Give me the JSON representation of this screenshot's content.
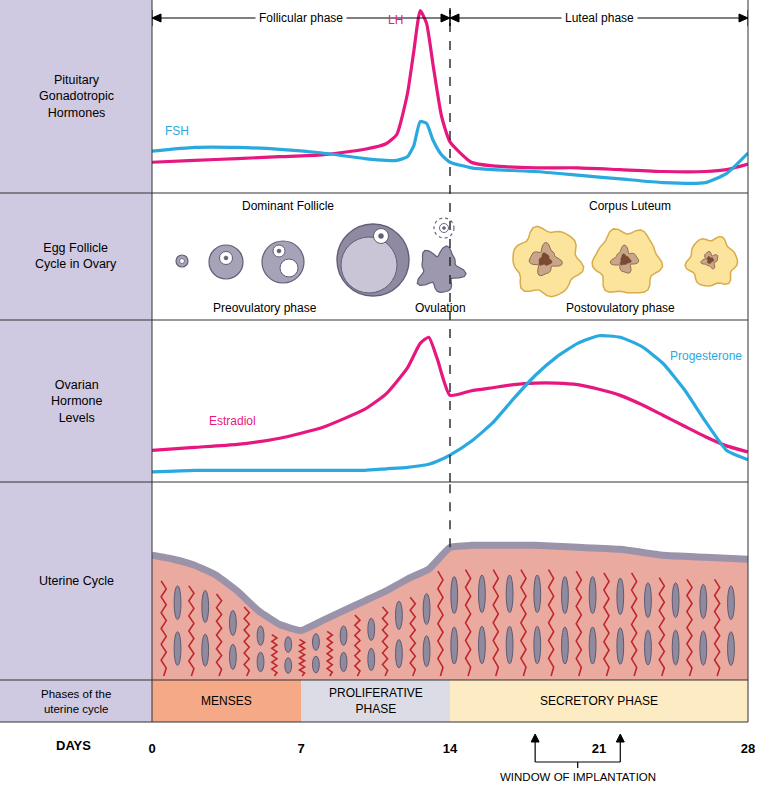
{
  "header": {
    "phases": [
      {
        "label": "Follicular phase",
        "start": 0,
        "end": 14
      },
      {
        "label": "Luteal phase",
        "start": 14,
        "end": 28
      }
    ]
  },
  "divider_day": 14,
  "chart_data": [
    {
      "type": "line",
      "title": "Pituitary\nGonadotropic\nHormones",
      "xlim": [
        0,
        28
      ],
      "ylim": [
        0,
        100
      ],
      "tick_labels": false,
      "x": [
        0,
        2,
        4,
        6,
        8,
        10,
        11,
        11.5,
        12,
        12.3,
        12.6,
        12.9,
        13.2,
        13.6,
        14,
        15,
        16,
        18,
        20,
        22,
        24,
        26,
        27,
        28
      ],
      "series": [
        {
          "name": "LH",
          "color": "#e6177f",
          "values": [
            15,
            16,
            17,
            18,
            19,
            22,
            25,
            30,
            52,
            75,
            97,
            90,
            68,
            40,
            26,
            15,
            13,
            12,
            12,
            11,
            10,
            10,
            11,
            14
          ]
        },
        {
          "name": "FSH",
          "color": "#2aa9e0",
          "values": [
            21,
            23,
            23,
            22,
            20,
            17,
            16,
            16,
            18,
            24,
            37,
            36,
            27,
            19,
            15,
            12,
            11,
            10,
            8,
            6,
            4,
            4,
            9,
            20
          ]
        }
      ]
    },
    {
      "type": "line",
      "title": "Ovarian\nHormone\nLevels",
      "xlim": [
        0,
        28
      ],
      "ylim": [
        0,
        100
      ],
      "tick_labels": false,
      "x": [
        0,
        2,
        4,
        6,
        8,
        10,
        11,
        12,
        12.6,
        13,
        13.4,
        14,
        15,
        16,
        17,
        18,
        19,
        20,
        21,
        22,
        23,
        24,
        25,
        26,
        27,
        28
      ],
      "series": [
        {
          "name": "Estradiol",
          "color": "#e6177f",
          "values": [
            18,
            20,
            22,
            26,
            33,
            45,
            55,
            72,
            88,
            92,
            78,
            54,
            57,
            59,
            61,
            62,
            62,
            61,
            58,
            54,
            48,
            41,
            34,
            27,
            21,
            17
          ]
        },
        {
          "name": "Progesterone",
          "color": "#2aa9e0",
          "values": [
            4,
            5,
            5,
            5,
            5,
            5,
            6,
            7,
            8,
            9,
            11,
            15,
            24,
            36,
            52,
            67,
            79,
            88,
            93,
            92,
            86,
            75,
            58,
            37,
            18,
            12
          ]
        }
      ]
    },
    {
      "type": "area",
      "title": "Uterine Cycle",
      "xlim": [
        0,
        28
      ],
      "ylim": [
        0,
        100
      ],
      "tick_labels": false,
      "color": "#eaaaa0",
      "x": [
        0,
        1,
        2,
        3,
        4,
        5,
        6,
        7,
        8,
        9,
        10,
        11,
        12,
        13,
        14,
        15,
        16,
        18,
        20,
        22,
        24,
        26,
        28
      ],
      "values": [
        63,
        61,
        58,
        53,
        45,
        35,
        28,
        25,
        30,
        35,
        40,
        45,
        51,
        56,
        67,
        68,
        68,
        68,
        67,
        66,
        63,
        62,
        61
      ]
    }
  ],
  "follicle_panel": {
    "title": "Egg Follicle\nCycle in Ovary",
    "top_labels": [
      "Dominant Follicle",
      "Corpus Luteum"
    ],
    "bottom_labels": [
      "Preovulatory phase",
      "Ovulation",
      "Postovulatory phase"
    ]
  },
  "uterine_phases": {
    "title": "Phases of the\nuterine cycle",
    "phases": [
      {
        "label": "MENSES",
        "start": 0,
        "end": 7,
        "color": "#f5a986"
      },
      {
        "label": "PROLIFERATIVE\nPHASE",
        "start": 7,
        "end": 14,
        "color": "#dcdce6"
      },
      {
        "label": "SECRETORY PHASE",
        "start": 14,
        "end": 28,
        "color": "#fdebc4"
      }
    ]
  },
  "days_axis": {
    "label": "DAYS",
    "xlim": [
      0,
      28
    ],
    "xticks": [
      0,
      7,
      14,
      21,
      28
    ]
  },
  "window_of_implantation": {
    "label": "WINDOW OF IMPLANTATION",
    "start": 18,
    "end": 22
  }
}
